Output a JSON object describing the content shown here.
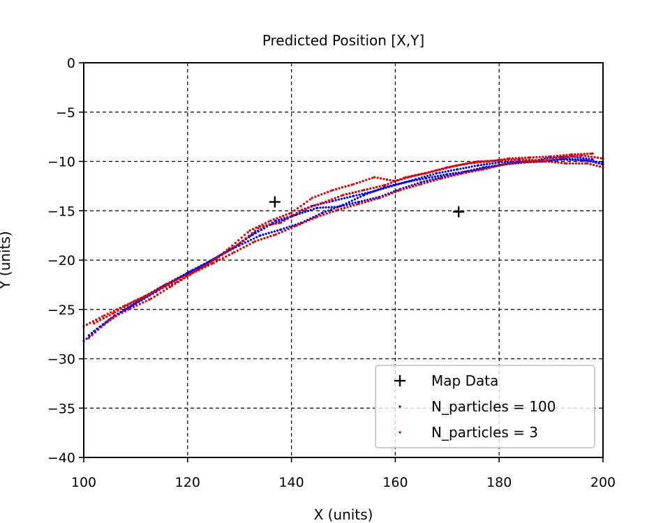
{
  "chart_data": {
    "type": "scatter",
    "title": "Predicted Position [X,Y]",
    "xlabel": "X (units)",
    "ylabel": "Y (units)",
    "xlim": [
      100,
      200
    ],
    "ylim": [
      -40,
      0
    ],
    "xticks": [
      100,
      120,
      140,
      160,
      180,
      200
    ],
    "yticks": [
      0,
      -5,
      -10,
      -15,
      -20,
      -25,
      -30,
      -35,
      -40
    ],
    "xtick_labels": [
      "100",
      "120",
      "140",
      "160",
      "180",
      "200"
    ],
    "ytick_labels": [
      "0",
      "−5",
      "−10",
      "−15",
      "−20",
      "−25",
      "−30",
      "−35",
      "−40"
    ],
    "grid": true,
    "legend_position": "lower-right",
    "series": [
      {
        "name": "Map Data",
        "marker": "plus",
        "color": "#000000",
        "points": [
          [
            136.8,
            -14.1
          ],
          [
            172.2,
            -15.1
          ]
        ]
      },
      {
        "name": "N_particles = 100",
        "marker": "dot",
        "color": "#0000ff",
        "tracks": [
          [
            [
              100,
              -28.2
            ],
            [
              104,
              -26.5
            ],
            [
              108,
              -25.0
            ],
            [
              112,
              -23.6
            ],
            [
              116,
              -22.4
            ],
            [
              120,
              -21.3
            ],
            [
              124,
              -20.2
            ],
            [
              128,
              -19.0
            ],
            [
              132,
              -17.6
            ],
            [
              136,
              -16.4
            ],
            [
              140,
              -15.6
            ],
            [
              144,
              -14.5
            ],
            [
              148,
              -14.0
            ],
            [
              152,
              -13.5
            ],
            [
              156,
              -13.0
            ],
            [
              160,
              -12.4
            ],
            [
              164,
              -11.8
            ],
            [
              168,
              -11.2
            ],
            [
              172,
              -10.8
            ],
            [
              176,
              -10.4
            ],
            [
              180,
              -10.1
            ],
            [
              184,
              -10.0
            ],
            [
              188,
              -10.0
            ],
            [
              192,
              -9.8
            ],
            [
              196,
              -9.9
            ],
            [
              200,
              -10.1
            ]
          ],
          [
            [
              101,
              -27.6
            ],
            [
              105,
              -26.0
            ],
            [
              109,
              -24.7
            ],
            [
              113,
              -23.4
            ],
            [
              117,
              -22.2
            ],
            [
              121,
              -21.0
            ],
            [
              125,
              -19.9
            ],
            [
              129,
              -18.7
            ],
            [
              133,
              -17.2
            ],
            [
              137,
              -16.0
            ],
            [
              141,
              -15.4
            ],
            [
              145,
              -14.7
            ],
            [
              149,
              -14.6
            ],
            [
              153,
              -14.1
            ],
            [
              157,
              -13.6
            ],
            [
              161,
              -12.8
            ],
            [
              165,
              -12.1
            ],
            [
              169,
              -11.6
            ],
            [
              173,
              -11.1
            ],
            [
              177,
              -10.6
            ],
            [
              181,
              -10.3
            ],
            [
              185,
              -10.1
            ],
            [
              189,
              -10.0
            ],
            [
              193,
              -9.7
            ],
            [
              197,
              -9.9
            ],
            [
              200,
              -10.3
            ]
          ],
          [
            [
              102,
              -27.2
            ],
            [
              106,
              -25.6
            ],
            [
              110,
              -24.4
            ],
            [
              114,
              -23.2
            ],
            [
              118,
              -21.9
            ],
            [
              122,
              -20.8
            ],
            [
              126,
              -19.6
            ],
            [
              130,
              -18.5
            ],
            [
              134,
              -17.5
            ],
            [
              138,
              -16.9
            ],
            [
              142,
              -16.2
            ],
            [
              146,
              -15.2
            ],
            [
              150,
              -14.4
            ],
            [
              154,
              -13.4
            ],
            [
              158,
              -12.6
            ],
            [
              162,
              -12.1
            ],
            [
              166,
              -11.7
            ],
            [
              170,
              -11.3
            ],
            [
              174,
              -11.0
            ],
            [
              178,
              -10.6
            ],
            [
              182,
              -10.2
            ],
            [
              186,
              -10.0
            ],
            [
              190,
              -9.6
            ],
            [
              194,
              -9.5
            ],
            [
              198,
              -9.8
            ]
          ]
        ]
      },
      {
        "name": "N_particles = 3",
        "marker": "square",
        "color": "#dd0000",
        "tracks": [
          [
            [
              100,
              -26.7
            ],
            [
              104,
              -25.6
            ],
            [
              108,
              -24.6
            ],
            [
              112,
              -23.6
            ],
            [
              116,
              -22.4
            ],
            [
              120,
              -21.5
            ],
            [
              124,
              -20.4
            ],
            [
              128,
              -18.8
            ],
            [
              132,
              -17.0
            ],
            [
              136,
              -16.0
            ],
            [
              140,
              -15.2
            ],
            [
              144,
              -13.7
            ],
            [
              148,
              -12.9
            ],
            [
              152,
              -12.3
            ],
            [
              156,
              -11.6
            ],
            [
              160,
              -12.0
            ],
            [
              164,
              -11.4
            ],
            [
              168,
              -10.9
            ],
            [
              172,
              -10.4
            ],
            [
              176,
              -10.0
            ],
            [
              180,
              -9.9
            ],
            [
              184,
              -9.8
            ],
            [
              188,
              -9.9
            ],
            [
              192,
              -9.6
            ],
            [
              196,
              -9.4
            ],
            [
              200,
              -9.7
            ]
          ],
          [
            [
              101,
              -27.9
            ],
            [
              105,
              -26.0
            ],
            [
              109,
              -24.9
            ],
            [
              113,
              -23.9
            ],
            [
              117,
              -22.6
            ],
            [
              121,
              -21.3
            ],
            [
              125,
              -20.3
            ],
            [
              129,
              -19.2
            ],
            [
              133,
              -18.1
            ],
            [
              137,
              -17.4
            ],
            [
              141,
              -16.5
            ],
            [
              145,
              -15.6
            ],
            [
              149,
              -14.9
            ],
            [
              153,
              -14.3
            ],
            [
              157,
              -13.7
            ],
            [
              161,
              -12.9
            ],
            [
              165,
              -12.3
            ],
            [
              169,
              -11.7
            ],
            [
              173,
              -11.2
            ],
            [
              177,
              -10.8
            ],
            [
              181,
              -10.3
            ],
            [
              185,
              -10.0
            ],
            [
              189,
              -10.0
            ],
            [
              193,
              -10.2
            ],
            [
              197,
              -10.2
            ],
            [
              200,
              -10.6
            ]
          ],
          [
            [
              102,
              -26.4
            ],
            [
              106,
              -25.3
            ],
            [
              110,
              -24.1
            ],
            [
              114,
              -23.1
            ],
            [
              118,
              -22.2
            ],
            [
              122,
              -21.0
            ],
            [
              126,
              -19.7
            ],
            [
              130,
              -18.3
            ],
            [
              134,
              -16.6
            ],
            [
              138,
              -16.2
            ],
            [
              142,
              -14.9
            ],
            [
              146,
              -14.2
            ],
            [
              150,
              -13.4
            ],
            [
              154,
              -12.9
            ],
            [
              158,
              -12.4
            ],
            [
              162,
              -11.6
            ],
            [
              166,
              -11.2
            ],
            [
              170,
              -10.6
            ],
            [
              174,
              -10.2
            ],
            [
              178,
              -10.0
            ],
            [
              182,
              -9.7
            ],
            [
              186,
              -9.6
            ],
            [
              190,
              -9.5
            ],
            [
              194,
              -9.3
            ],
            [
              198,
              -9.2
            ]
          ]
        ]
      }
    ]
  }
}
